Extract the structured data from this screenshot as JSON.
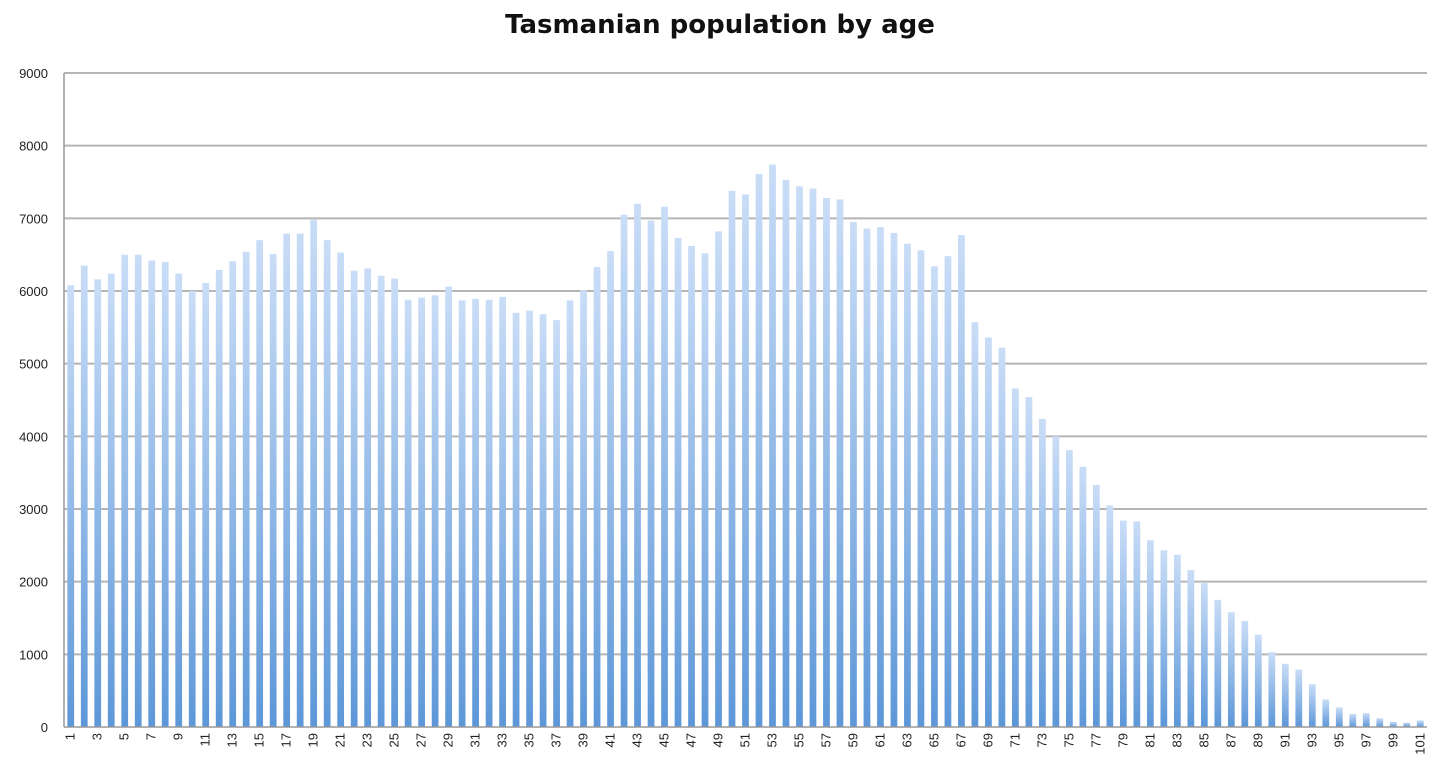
{
  "chart_data": {
    "type": "bar",
    "title": "Tasmanian population by age",
    "xlabel": "",
    "ylabel": "",
    "ylim": [
      0,
      9000
    ],
    "yticks": [
      0,
      1000,
      2000,
      3000,
      4000,
      5000,
      6000,
      7000,
      8000,
      9000
    ],
    "grid": true,
    "legend": "none",
    "colors": {
      "bar_top": "#c9ddf7",
      "bar_bottom": "#5d97d8",
      "grid": "#b5b5b5",
      "axis": "#999999"
    },
    "categories": [
      "1",
      "2",
      "3",
      "4",
      "5",
      "6",
      "7",
      "8",
      "9",
      "10",
      "11",
      "12",
      "13",
      "14",
      "15",
      "16",
      "17",
      "18",
      "19",
      "20",
      "21",
      "22",
      "23",
      "24",
      "25",
      "26",
      "27",
      "28",
      "29",
      "30",
      "31",
      "32",
      "33",
      "34",
      "35",
      "36",
      "37",
      "38",
      "39",
      "40",
      "41",
      "42",
      "43",
      "44",
      "45",
      "46",
      "47",
      "48",
      "49",
      "50",
      "51",
      "52",
      "53",
      "54",
      "55",
      "56",
      "57",
      "58",
      "59",
      "60",
      "61",
      "62",
      "63",
      "64",
      "65",
      "66",
      "67",
      "68",
      "69",
      "70",
      "71",
      "72",
      "73",
      "74",
      "75",
      "76",
      "77",
      "78",
      "79",
      "80",
      "81",
      "82",
      "83",
      "84",
      "85",
      "86",
      "87",
      "88",
      "89",
      "90",
      "91",
      "92",
      "93",
      "94",
      "95",
      "96",
      "97",
      "98",
      "99",
      "100",
      "101"
    ],
    "tick_labels": [
      "1",
      "3",
      "5",
      "7",
      "9",
      "11",
      "13",
      "15",
      "17",
      "19",
      "21",
      "23",
      "25",
      "27",
      "29",
      "31",
      "33",
      "35",
      "37",
      "39",
      "41",
      "43",
      "45",
      "47",
      "49",
      "51",
      "53",
      "55",
      "57",
      "59",
      "61",
      "63",
      "65",
      "67",
      "69",
      "71",
      "73",
      "75",
      "77",
      "79",
      "81",
      "83",
      "85",
      "87",
      "89",
      "91",
      "93",
      "95",
      "97",
      "99",
      "101"
    ],
    "values": [
      6080,
      6350,
      6160,
      6240,
      6500,
      6500,
      6420,
      6400,
      6240,
      6000,
      6110,
      6290,
      6410,
      6540,
      6700,
      6510,
      6790,
      6790,
      6980,
      6700,
      6530,
      6280,
      6310,
      6210,
      6170,
      5880,
      5910,
      5940,
      6060,
      5870,
      5890,
      5880,
      5920,
      5700,
      5730,
      5680,
      5600,
      5870,
      6010,
      6330,
      6550,
      7050,
      7200,
      6970,
      7160,
      6730,
      6620,
      6520,
      6820,
      7380,
      7330,
      7610,
      7740,
      7530,
      7440,
      7410,
      7280,
      7260,
      6950,
      6860,
      6880,
      6800,
      6650,
      6560,
      6340,
      6480,
      6770,
      5570,
      5360,
      5220,
      4660,
      4540,
      4240,
      4000,
      3810,
      3580,
      3330,
      3050,
      2840,
      2830,
      2570,
      2430,
      2370,
      2160,
      1980,
      1750,
      1580,
      1460,
      1270,
      1030,
      870,
      790,
      590,
      380,
      270,
      180,
      190,
      120,
      70,
      60,
      90
    ]
  }
}
